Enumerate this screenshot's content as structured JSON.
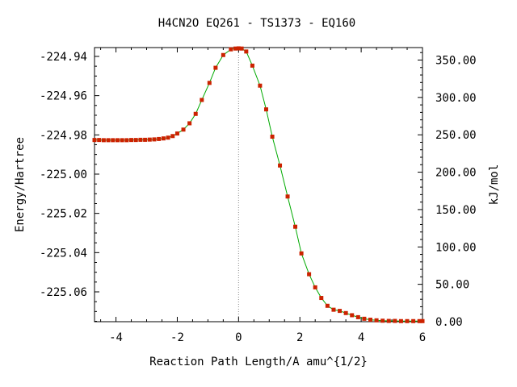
{
  "chart_data": {
    "type": "line",
    "title": "H4CN2O   EQ261 - TS1373 - EQ160",
    "xlabel": "Reaction Path Length/A amu^{1/2}",
    "ylabel": "Energy/Hartree",
    "y2label": "kJ/mol",
    "xlim": [
      -4.7,
      6.0
    ],
    "ylim": [
      -225.0752,
      -224.9355
    ],
    "y2lim": [
      0.0,
      366.7
    ],
    "x_ticks": [
      "-4",
      "-2",
      "0",
      "2",
      "4",
      "6"
    ],
    "x_tick_values": [
      -4,
      -2,
      0,
      2,
      4,
      6
    ],
    "y_ticks": [
      "-224.94",
      "-224.96",
      "-224.98",
      "-225.00",
      "-225.02",
      "-225.04",
      "-225.06"
    ],
    "y_tick_values": [
      -224.94,
      -224.96,
      -224.98,
      -225.0,
      -225.02,
      -225.04,
      -225.06
    ],
    "y2_ticks": [
      "350.00",
      "300.00",
      "250.00",
      "200.00",
      "150.00",
      "100.00",
      "50.00",
      "0.00"
    ],
    "y2_tick_values": [
      350,
      300,
      250,
      200,
      150,
      100,
      50,
      0
    ],
    "ts_marker_x": 0.0,
    "line_color": "#00aa00",
    "marker_color": "#cc2200",
    "series": [
      {
        "points": [
          [
            -4.7,
            -224.9826
          ],
          [
            -4.55,
            -224.9826
          ],
          [
            -4.4,
            -224.9827
          ],
          [
            -4.25,
            -224.9827
          ],
          [
            -4.1,
            -224.9827
          ],
          [
            -3.95,
            -224.9827
          ],
          [
            -3.8,
            -224.9827
          ],
          [
            -3.65,
            -224.9827
          ],
          [
            -3.5,
            -224.9826
          ],
          [
            -3.35,
            -224.9826
          ],
          [
            -3.2,
            -224.9825
          ],
          [
            -3.05,
            -224.9825
          ],
          [
            -2.9,
            -224.9824
          ],
          [
            -2.75,
            -224.9823
          ],
          [
            -2.6,
            -224.9821
          ],
          [
            -2.45,
            -224.9818
          ],
          [
            -2.3,
            -224.9814
          ],
          [
            -2.15,
            -224.9806
          ],
          [
            -2.0,
            -224.9793
          ],
          [
            -1.8,
            -224.9773
          ],
          [
            -1.6,
            -224.9741
          ],
          [
            -1.4,
            -224.9693
          ],
          [
            -1.2,
            -224.9622
          ],
          [
            -0.95,
            -224.9535
          ],
          [
            -0.75,
            -224.9458
          ],
          [
            -0.5,
            -224.9393
          ],
          [
            -0.25,
            -224.9364
          ],
          [
            -0.1,
            -224.936
          ],
          [
            0.0,
            -224.9359
          ],
          [
            0.1,
            -224.936
          ],
          [
            0.25,
            -224.9375
          ],
          [
            0.45,
            -224.9447
          ],
          [
            0.7,
            -224.9549
          ],
          [
            0.9,
            -224.967
          ],
          [
            1.1,
            -224.9809
          ],
          [
            1.35,
            -224.9956
          ],
          [
            1.6,
            -225.0114
          ],
          [
            1.85,
            -225.0268
          ],
          [
            2.05,
            -225.0404
          ],
          [
            2.3,
            -225.051
          ],
          [
            2.5,
            -225.0577
          ],
          [
            2.7,
            -225.0631
          ],
          [
            2.9,
            -225.0671
          ],
          [
            3.1,
            -225.0691
          ],
          [
            3.3,
            -225.0697
          ],
          [
            3.5,
            -225.0708
          ],
          [
            3.7,
            -225.0719
          ],
          [
            3.9,
            -225.0729
          ],
          [
            4.1,
            -225.0737
          ],
          [
            4.3,
            -225.0742
          ],
          [
            4.5,
            -225.0745
          ],
          [
            4.7,
            -225.0747
          ],
          [
            4.9,
            -225.0748
          ],
          [
            5.1,
            -225.0748
          ],
          [
            5.3,
            -225.0749
          ],
          [
            5.5,
            -225.0749
          ],
          [
            5.7,
            -225.0749
          ],
          [
            5.9,
            -225.0749
          ],
          [
            6.0,
            -225.0749
          ]
        ]
      }
    ]
  }
}
